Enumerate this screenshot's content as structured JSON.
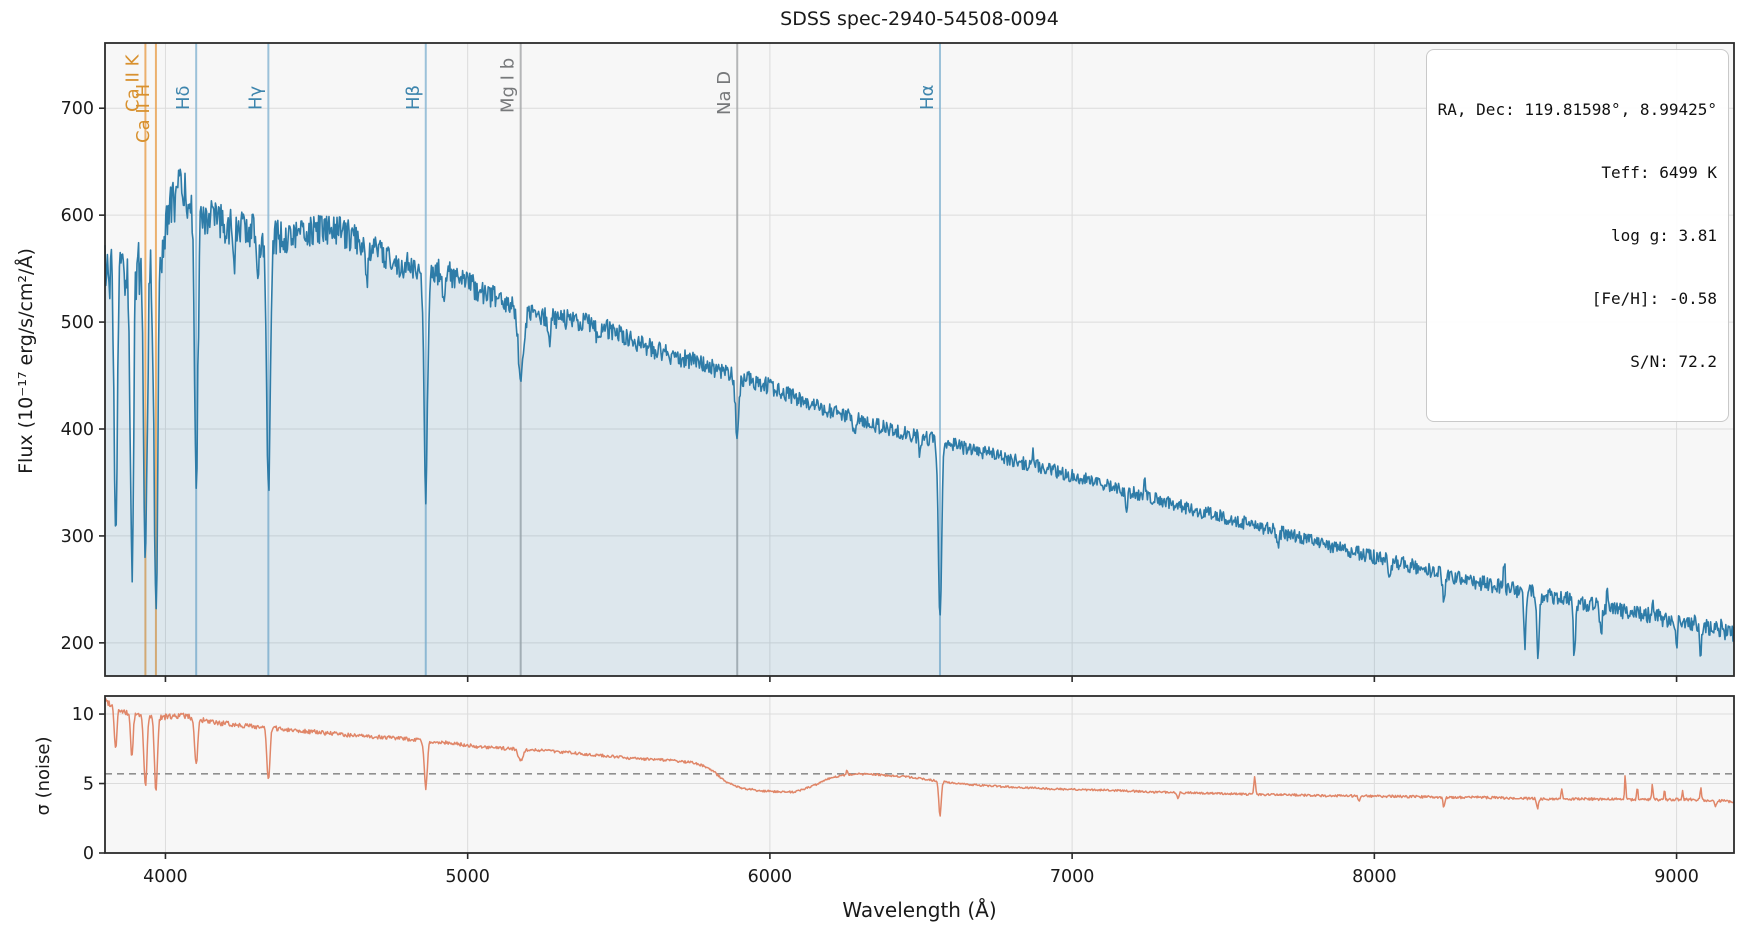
{
  "figure": {
    "title": "SDSS spec-2940-54508-0094",
    "xlabel": "Wavelength (Å)",
    "background": "#ffffff",
    "axes_background": "#f7f7f7",
    "grid_color": "#dcdcdc",
    "spine_color": "#2b2b2b",
    "tick_label_color": "#1a1a1a"
  },
  "info_box": {
    "lines": [
      "RA, Dec: 119.81598°, 8.99425°",
      "Teff: 6499 K",
      "log g: 3.81",
      "[Fe/H]: -0.58",
      "S/N: 72.2"
    ]
  },
  "chart_data": [
    {
      "type": "line",
      "name": "flux-spectrum",
      "ylabel": "Flux (10⁻¹⁷ erg/s/cm²/Å)",
      "xlim": [
        3800,
        9190
      ],
      "ylim": [
        169,
        761
      ],
      "xticks": [
        4000,
        5000,
        6000,
        7000,
        8000,
        9000
      ],
      "yticks": [
        200,
        300,
        400,
        500,
        600,
        700
      ],
      "grid": true,
      "show_xtick_labels": false,
      "line_color": "#2e7ca8",
      "line_width": 1.6,
      "fill_color": "rgba(46,124,168,0.13)",
      "noise_seed": 12345,
      "clip": [
        172,
        758
      ],
      "continuum": [
        [
          3800,
          545
        ],
        [
          3900,
          550
        ],
        [
          3960,
          557
        ],
        [
          3990,
          572
        ],
        [
          4015,
          605
        ],
        [
          4045,
          624
        ],
        [
          4075,
          616
        ],
        [
          4110,
          608
        ],
        [
          4150,
          596
        ],
        [
          4220,
          590
        ],
        [
          4300,
          585
        ],
        [
          4380,
          579
        ],
        [
          4460,
          584
        ],
        [
          4540,
          587
        ],
        [
          4620,
          580
        ],
        [
          4700,
          566
        ],
        [
          4780,
          553
        ],
        [
          4860,
          549
        ],
        [
          4940,
          545
        ],
        [
          5000,
          536
        ],
        [
          5060,
          527
        ],
        [
          5120,
          517
        ],
        [
          5180,
          509
        ],
        [
          5260,
          505
        ],
        [
          5340,
          502
        ],
        [
          5420,
          498
        ],
        [
          5500,
          489
        ],
        [
          5580,
          478
        ],
        [
          5660,
          470
        ],
        [
          5740,
          464
        ],
        [
          5820,
          456
        ],
        [
          5900,
          449
        ],
        [
          5980,
          442
        ],
        [
          6060,
          432
        ],
        [
          6140,
          423
        ],
        [
          6220,
          415
        ],
        [
          6300,
          408
        ],
        [
          6380,
          401
        ],
        [
          6460,
          395
        ],
        [
          6540,
          390
        ],
        [
          6620,
          384
        ],
        [
          6700,
          379
        ],
        [
          6780,
          373
        ],
        [
          6860,
          367
        ],
        [
          6940,
          361
        ],
        [
          7020,
          355
        ],
        [
          7120,
          347
        ],
        [
          7220,
          339
        ],
        [
          7320,
          331
        ],
        [
          7420,
          323
        ],
        [
          7520,
          316
        ],
        [
          7620,
          309
        ],
        [
          7720,
          301
        ],
        [
          7820,
          293
        ],
        [
          7920,
          286
        ],
        [
          8020,
          279
        ],
        [
          8120,
          272
        ],
        [
          8220,
          265
        ],
        [
          8320,
          258
        ],
        [
          8420,
          252
        ],
        [
          8520,
          247
        ],
        [
          8620,
          242
        ],
        [
          8720,
          236
        ],
        [
          8820,
          230
        ],
        [
          8920,
          225
        ],
        [
          9020,
          219
        ],
        [
          9120,
          213
        ],
        [
          9190,
          208
        ]
      ],
      "jitter": [
        [
          3800,
          28
        ],
        [
          3950,
          26
        ],
        [
          4000,
          22
        ],
        [
          4200,
          18
        ],
        [
          4500,
          15
        ],
        [
          4800,
          13
        ],
        [
          5100,
          11
        ],
        [
          5500,
          9
        ],
        [
          5900,
          8
        ],
        [
          6300,
          7
        ],
        [
          6800,
          6.5
        ],
        [
          7300,
          6
        ],
        [
          7800,
          6.5
        ],
        [
          8300,
          7
        ],
        [
          8700,
          7.5
        ],
        [
          9000,
          8
        ],
        [
          9190,
          7.5
        ]
      ],
      "absorption_features": [
        [
          3835,
          265,
          5
        ],
        [
          3889,
          290,
          5
        ],
        [
          3933.7,
          268,
          6
        ],
        [
          3968.5,
          330,
          6
        ],
        [
          4101.7,
          252,
          6
        ],
        [
          4227,
          38,
          4
        ],
        [
          4305,
          32,
          6
        ],
        [
          4340.5,
          238,
          6
        ],
        [
          4668,
          26,
          5
        ],
        [
          4861.3,
          208,
          6
        ],
        [
          4920,
          30,
          4
        ],
        [
          5175.4,
          55,
          9
        ],
        [
          5270,
          20,
          5
        ],
        [
          5430,
          16,
          4
        ],
        [
          5891.9,
          54,
          6
        ],
        [
          6280,
          16,
          4
        ],
        [
          6495,
          18,
          3
        ],
        [
          6562.8,
          164,
          5.5
        ],
        [
          7180,
          14,
          4
        ],
        [
          7680,
          16,
          4
        ],
        [
          8050,
          18,
          4
        ],
        [
          8230,
          22,
          4
        ],
        [
          8498,
          48,
          4
        ],
        [
          8542,
          58,
          4
        ],
        [
          8662,
          52,
          4
        ],
        [
          8750,
          25,
          4
        ],
        [
          9000,
          22,
          3
        ],
        [
          9080,
          26,
          3
        ]
      ],
      "emission_features": [
        [
          6870,
          15,
          2
        ],
        [
          7240,
          13,
          2
        ],
        [
          8430,
          26,
          2.5
        ],
        [
          8770,
          13,
          2
        ],
        [
          8920,
          17,
          2
        ],
        [
          9060,
          15,
          2
        ],
        [
          9150,
          13,
          2
        ]
      ],
      "spectral_lines": [
        {
          "label": "Ca II K",
          "wavelength": 3933.7,
          "line_color": "#e9a455",
          "label_color": "#d8912f",
          "label_bottom": 112
        },
        {
          "label": "Ca II H",
          "wavelength": 3968.5,
          "line_color": "#e9a455",
          "label_color": "#d8912f",
          "label_bottom": 143
        },
        {
          "label": "Hδ",
          "wavelength": 4101.7,
          "line_color": "#8cb8d4",
          "label_color": "#3d85ad",
          "label_bottom": 110
        },
        {
          "label": "Hγ",
          "wavelength": 4340.5,
          "line_color": "#8cb8d4",
          "label_color": "#3d85ad",
          "label_bottom": 110
        },
        {
          "label": "Hβ",
          "wavelength": 4861.3,
          "line_color": "#8cb8d4",
          "label_color": "#3d85ad",
          "label_bottom": 110
        },
        {
          "label": "Mg I b",
          "wavelength": 5175.4,
          "line_color": "#a9abac",
          "label_color": "#77797b",
          "label_bottom": 113
        },
        {
          "label": "Na D",
          "wavelength": 5891.9,
          "line_color": "#a9abac",
          "label_color": "#77797b",
          "label_bottom": 115
        },
        {
          "label": "Hα",
          "wavelength": 6562.8,
          "line_color": "#8cb8d4",
          "label_color": "#3d85ad",
          "label_bottom": 110
        }
      ]
    },
    {
      "type": "line",
      "name": "noise-spectrum",
      "ylabel": "σ (noise)",
      "xlim": [
        3800,
        9190
      ],
      "ylim": [
        0,
        11.3
      ],
      "xticks": [
        4000,
        5000,
        6000,
        7000,
        8000,
        9000
      ],
      "yticks": [
        0,
        5,
        10
      ],
      "grid": true,
      "show_xtick_labels": true,
      "line_color": "#e08668",
      "line_width": 1.5,
      "noise_seed": 99,
      "clip": [
        0.25,
        11.22
      ],
      "median_line": {
        "value": 5.7,
        "color": "#909090",
        "dash": "7 5"
      },
      "continuum": [
        [
          3800,
          11.0
        ],
        [
          3860,
          10.1
        ],
        [
          3920,
          9.9
        ],
        [
          4000,
          9.8
        ],
        [
          4060,
          9.9
        ],
        [
          4150,
          9.4
        ],
        [
          4250,
          9.2
        ],
        [
          4350,
          9.0
        ],
        [
          4450,
          8.8
        ],
        [
          4550,
          8.6
        ],
        [
          4650,
          8.4
        ],
        [
          4750,
          8.3
        ],
        [
          4850,
          8.1
        ],
        [
          4950,
          7.9
        ],
        [
          5050,
          7.6
        ],
        [
          5150,
          7.5
        ],
        [
          5250,
          7.4
        ],
        [
          5350,
          7.2
        ],
        [
          5450,
          7.0
        ],
        [
          5550,
          6.8
        ],
        [
          5650,
          6.7
        ],
        [
          5750,
          6.5
        ],
        [
          5800,
          6.1
        ],
        [
          5850,
          5.2
        ],
        [
          5900,
          4.7
        ],
        [
          5960,
          4.5
        ],
        [
          6020,
          4.4
        ],
        [
          6080,
          4.4
        ],
        [
          6140,
          4.8
        ],
        [
          6200,
          5.4
        ],
        [
          6260,
          5.65
        ],
        [
          6320,
          5.7
        ],
        [
          6380,
          5.6
        ],
        [
          6440,
          5.5
        ],
        [
          6500,
          5.35
        ],
        [
          6580,
          5.1
        ],
        [
          6650,
          4.95
        ],
        [
          6750,
          4.8
        ],
        [
          6850,
          4.7
        ],
        [
          6950,
          4.6
        ],
        [
          7050,
          4.55
        ],
        [
          7150,
          4.5
        ],
        [
          7250,
          4.4
        ],
        [
          7350,
          4.35
        ],
        [
          7450,
          4.3
        ],
        [
          7550,
          4.25
        ],
        [
          7650,
          4.2
        ],
        [
          7750,
          4.18
        ],
        [
          7850,
          4.12
        ],
        [
          7950,
          4.1
        ],
        [
          8050,
          4.08
        ],
        [
          8150,
          4.05
        ],
        [
          8250,
          4.0
        ],
        [
          8350,
          4.0
        ],
        [
          8450,
          3.95
        ],
        [
          8550,
          3.9
        ],
        [
          8650,
          3.9
        ],
        [
          8750,
          3.88
        ],
        [
          8850,
          3.85
        ],
        [
          8950,
          3.85
        ],
        [
          9050,
          3.85
        ],
        [
          9150,
          3.75
        ],
        [
          9190,
          3.7
        ]
      ],
      "jitter": [
        [
          3800,
          0.22
        ],
        [
          4600,
          0.15
        ],
        [
          5400,
          0.1
        ],
        [
          6200,
          0.07
        ],
        [
          7200,
          0.07
        ],
        [
          8200,
          0.09
        ],
        [
          9190,
          0.1
        ]
      ],
      "absorption_features": [
        [
          3835,
          3.0,
          4
        ],
        [
          3889,
          3.1,
          4
        ],
        [
          3933.7,
          5.2,
          5
        ],
        [
          3968.5,
          5.3,
          5
        ],
        [
          4101.7,
          3.3,
          5
        ],
        [
          4340.5,
          3.8,
          5
        ],
        [
          4861.3,
          3.4,
          5
        ],
        [
          5175.4,
          0.8,
          8
        ],
        [
          6562.8,
          2.5,
          4
        ],
        [
          7350,
          0.4,
          3
        ],
        [
          7950,
          0.4,
          3
        ],
        [
          8230,
          0.7,
          3
        ],
        [
          8540,
          0.7,
          3
        ],
        [
          9130,
          0.4,
          3
        ]
      ],
      "emission_features": [
        [
          6255,
          0.35,
          2
        ],
        [
          7604,
          1.3,
          2.5
        ],
        [
          8620,
          0.65,
          2.5
        ],
        [
          8830,
          1.75,
          2
        ],
        [
          8870,
          0.9,
          2
        ],
        [
          8920,
          1.05,
          2
        ],
        [
          8960,
          0.75,
          2
        ],
        [
          9020,
          0.65,
          2
        ],
        [
          9080,
          0.95,
          2
        ]
      ],
      "spectral_lines": []
    }
  ]
}
